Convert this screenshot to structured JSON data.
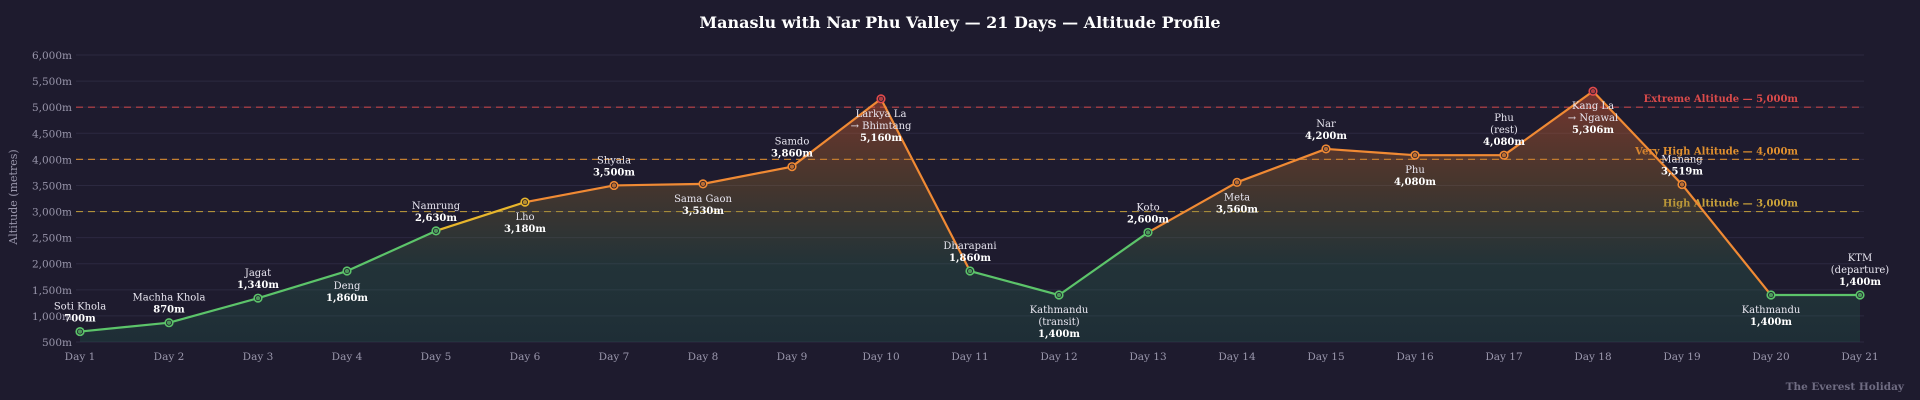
{
  "chart_data": {
    "type": "line",
    "title": "Manaslu with Nar Phu Valley — 21 Days — Altitude Profile",
    "ylabel": "Altitude (metres)",
    "xlabel": "",
    "ylim": [
      500,
      6000
    ],
    "y_ticks": [
      {
        "value": 500,
        "label": "500m"
      },
      {
        "value": 1000,
        "label": "1,000m"
      },
      {
        "value": 1500,
        "label": "1,500m"
      },
      {
        "value": 2000,
        "label": "2,000m"
      },
      {
        "value": 2500,
        "label": "2,500m"
      },
      {
        "value": 3000,
        "label": "3,000m"
      },
      {
        "value": 3500,
        "label": "3,500m"
      },
      {
        "value": 4000,
        "label": "4,000m"
      },
      {
        "value": 4500,
        "label": "4,500m"
      },
      {
        "value": 5000,
        "label": "5,000m"
      },
      {
        "value": 5500,
        "label": "5,500m"
      },
      {
        "value": 6000,
        "label": "6,000m"
      }
    ],
    "grid": true,
    "categories": [
      "Day 1",
      "Day 2",
      "Day 3",
      "Day 4",
      "Day 5",
      "Day 6",
      "Day 7",
      "Day 8",
      "Day 9",
      "Day 10",
      "Day 11",
      "Day 12",
      "Day 13",
      "Day 14",
      "Day 15",
      "Day 16",
      "Day 17",
      "Day 18",
      "Day 19",
      "Day 20",
      "Day 21"
    ],
    "points": [
      {
        "day": "Day 1",
        "name": "Soti Khola",
        "value": 700,
        "label": "700m",
        "pos": "above"
      },
      {
        "day": "Day 2",
        "name": "Machha Khola",
        "value": 870,
        "label": "870m",
        "pos": "above"
      },
      {
        "day": "Day 3",
        "name": "Jagat",
        "value": 1340,
        "label": "1,340m",
        "pos": "above"
      },
      {
        "day": "Day 4",
        "name": "Deng",
        "value": 1860,
        "label": "1,860m",
        "pos": "below"
      },
      {
        "day": "Day 5",
        "name": "Namrung",
        "value": 2630,
        "label": "2,630m",
        "pos": "above"
      },
      {
        "day": "Day 6",
        "name": "Lho",
        "value": 3180,
        "label": "3,180m",
        "pos": "below"
      },
      {
        "day": "Day 7",
        "name": "Shyala",
        "value": 3500,
        "label": "3,500m",
        "pos": "above"
      },
      {
        "day": "Day 8",
        "name": "Sama Gaon",
        "value": 3530,
        "label": "3,530m",
        "pos": "below"
      },
      {
        "day": "Day 9",
        "name": "Samdo",
        "value": 3860,
        "label": "3,860m",
        "pos": "above"
      },
      {
        "day": "Day 10",
        "name": "Larkya La\n→ Bhimtang",
        "value": 5160,
        "label": "5,160m",
        "pos": "below"
      },
      {
        "day": "Day 11",
        "name": "Dharapani",
        "value": 1860,
        "label": "1,860m",
        "pos": "above"
      },
      {
        "day": "Day 12",
        "name": "Kathmandu\n(transit)",
        "value": 1400,
        "label": "1,400m",
        "pos": "below"
      },
      {
        "day": "Day 13",
        "name": "Koto",
        "value": 2600,
        "label": "2,600m",
        "pos": "above"
      },
      {
        "day": "Day 14",
        "name": "Meta",
        "value": 3560,
        "label": "3,560m",
        "pos": "below"
      },
      {
        "day": "Day 15",
        "name": "Nar",
        "value": 4200,
        "label": "4,200m",
        "pos": "above"
      },
      {
        "day": "Day 16",
        "name": "Phu",
        "value": 4080,
        "label": "4,080m",
        "pos": "below"
      },
      {
        "day": "Day 17",
        "name": "Phu\n(rest)",
        "value": 4080,
        "label": "4,080m",
        "pos": "above"
      },
      {
        "day": "Day 18",
        "name": "Kang La\n→ Ngawal",
        "value": 5306,
        "label": "5,306m",
        "pos": "below"
      },
      {
        "day": "Day 19",
        "name": "Manang",
        "value": 3519,
        "label": "3,519m",
        "pos": "above"
      },
      {
        "day": "Day 20",
        "name": "Kathmandu",
        "value": 1400,
        "label": "1,400m",
        "pos": "below"
      },
      {
        "day": "Day 21",
        "name": "KTM\n(departure)",
        "value": 1400,
        "label": "1,400m",
        "pos": "above"
      }
    ],
    "reference_lines": [
      {
        "value": 5000,
        "label": "Extreme Altitude — 5,000m",
        "color": "#d94a4a"
      },
      {
        "value": 4000,
        "label": "Very High Altitude — 4,000m",
        "color": "#e0902f"
      },
      {
        "value": 3000,
        "label": "High Altitude — 3,000m",
        "color": "#c9a23a"
      }
    ],
    "colors": {
      "low": "#5cc46a",
      "mid": "#e8b62c",
      "high": "#f08a34",
      "extreme": "#e34b4b",
      "background": "#1e1b2e"
    }
  },
  "watermark": "The Everest Holiday"
}
